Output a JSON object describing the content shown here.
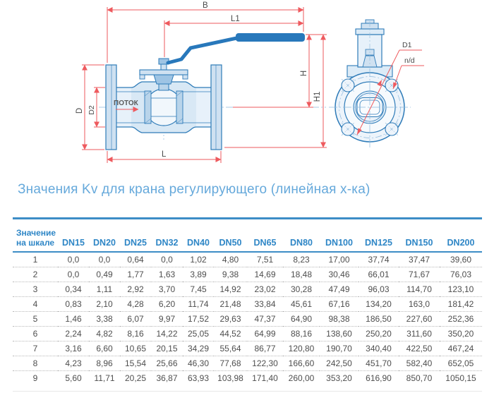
{
  "diagram": {
    "labels": {
      "B": "B",
      "L1": "L1",
      "D": "D",
      "D2": "D2",
      "L": "L",
      "H": "H",
      "H1": "H1",
      "D1": "D1",
      "nd": "n/d",
      "flow": "ПОТОК"
    },
    "colors": {
      "drawing_blue": "#2e7bb8",
      "handle_blue": "#2878bb",
      "dimension_red": "#ee5a5e",
      "label_gray": "#4a4a4a"
    }
  },
  "section_title": "Значения Kv для крана регулирующего (линейная х-ка)",
  "table": {
    "header_col1_line1": "Значение",
    "header_col1_line2": "на шкале",
    "dn_headers": [
      "DN15",
      "DN20",
      "DN25",
      "DN32",
      "DN40",
      "DN50",
      "DN65",
      "DN80",
      "DN100",
      "DN125",
      "DN150",
      "DN200"
    ],
    "accent_color": "#2e86c6",
    "rows": [
      {
        "scale": "1",
        "values": [
          "0,0",
          "0,0",
          "0,64",
          "0,0",
          "1,02",
          "4,80",
          "7,51",
          "8,23",
          "17,00",
          "37,74",
          "37,47",
          "39,60"
        ]
      },
      {
        "scale": "2",
        "values": [
          "0,0",
          "0,49",
          "1,77",
          "1,63",
          "3,89",
          "9,38",
          "14,69",
          "18,48",
          "30,46",
          "66,01",
          "71,67",
          "76,03"
        ]
      },
      {
        "scale": "3",
        "values": [
          "0,34",
          "1,11",
          "2,92",
          "3,70",
          "7,45",
          "14,92",
          "23,02",
          "30,28",
          "47,49",
          "96,03",
          "114,70",
          "123,10"
        ]
      },
      {
        "scale": "4",
        "values": [
          "0,83",
          "2,10",
          "4,28",
          "6,20",
          "11,74",
          "21,48",
          "33,84",
          "45,61",
          "67,16",
          "134,20",
          "163,0",
          "181,42"
        ]
      },
      {
        "scale": "5",
        "values": [
          "1,46",
          "3,38",
          "6,07",
          "9,97",
          "17,52",
          "29,63",
          "47,37",
          "64,90",
          "98,38",
          "186,50",
          "227,60",
          "252,36"
        ]
      },
      {
        "scale": "6",
        "values": [
          "2,24",
          "4,82",
          "8,16",
          "14,22",
          "25,05",
          "44,52",
          "64,99",
          "88,16",
          "138,60",
          "250,20",
          "311,60",
          "350,20"
        ]
      },
      {
        "scale": "7",
        "values": [
          "3,16",
          "6,60",
          "10,65",
          "20,15",
          "34,29",
          "55,64",
          "86,77",
          "120,80",
          "190,70",
          "340,40",
          "422,50",
          "467,24"
        ]
      },
      {
        "scale": "8",
        "values": [
          "4,23",
          "8,96",
          "15,54",
          "25,66",
          "46,30",
          "77,68",
          "122,30",
          "166,60",
          "242,50",
          "451,70",
          "582,40",
          "652,05"
        ]
      },
      {
        "scale": "9",
        "values": [
          "5,60",
          "11,71",
          "20,25",
          "36,87",
          "63,93",
          "103,98",
          "171,40",
          "260,00",
          "353,20",
          "616,90",
          "850,70",
          "1050,15"
        ]
      }
    ]
  }
}
